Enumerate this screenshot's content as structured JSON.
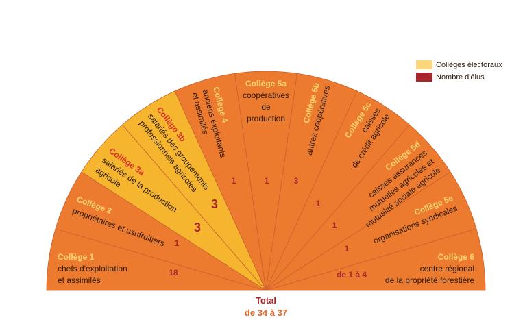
{
  "legend": {
    "colleges": "Collèges électoraux",
    "elus": "Nombre d'élus"
  },
  "sectors": [
    {
      "title": "Collège 1",
      "lines": [
        "chefs d'exploitation",
        "et assimilés"
      ],
      "count": "18",
      "color": "#ec7b30"
    },
    {
      "title": "Collège 2",
      "lines": [
        "propriétaires et usufruitiers"
      ],
      "count": "1",
      "color": "#ec7b30"
    },
    {
      "title": "Collège 3a",
      "lines": [
        "salariés de la production",
        "agricole"
      ],
      "count": "3",
      "color": "#f5b52e"
    },
    {
      "title": "Collège 3b",
      "lines": [
        "salariés des groupements",
        "professionnels agricoles"
      ],
      "count": "3",
      "color": "#f5b52e"
    },
    {
      "title": "Collège 4",
      "lines": [
        "anciens exploitants",
        "et assimilés"
      ],
      "count": "1",
      "color": "#ec7b30"
    },
    {
      "title": "Collège 5a",
      "lines": [
        "coopératives",
        "de",
        "production"
      ],
      "count": "1",
      "color": "#ec7b30"
    },
    {
      "title": "Collège 5b",
      "lines": [
        "autres coopératives"
      ],
      "count": "3",
      "color": "#ec7b30"
    },
    {
      "title": "Collège 5c",
      "lines": [
        "caisses",
        "de crédit agricole"
      ],
      "count": "1",
      "color": "#ec7b30"
    },
    {
      "title": "Collège 5d",
      "lines": [
        "caisses assurances",
        "mutuelles agricoles et",
        "mutualité sociale agricole"
      ],
      "count": "1",
      "color": "#ec7b30"
    },
    {
      "title": "Collège 5e",
      "lines": [
        "organisations syndicales"
      ],
      "count": "1",
      "color": "#ec7b30"
    },
    {
      "title": "Collège 6",
      "lines": [
        "centre régional",
        "de la propriété forestière"
      ],
      "count": "de 1 à 4",
      "color": "#ec7b30"
    }
  ],
  "total": {
    "label": "Total",
    "value": "de 34 à 37"
  }
}
